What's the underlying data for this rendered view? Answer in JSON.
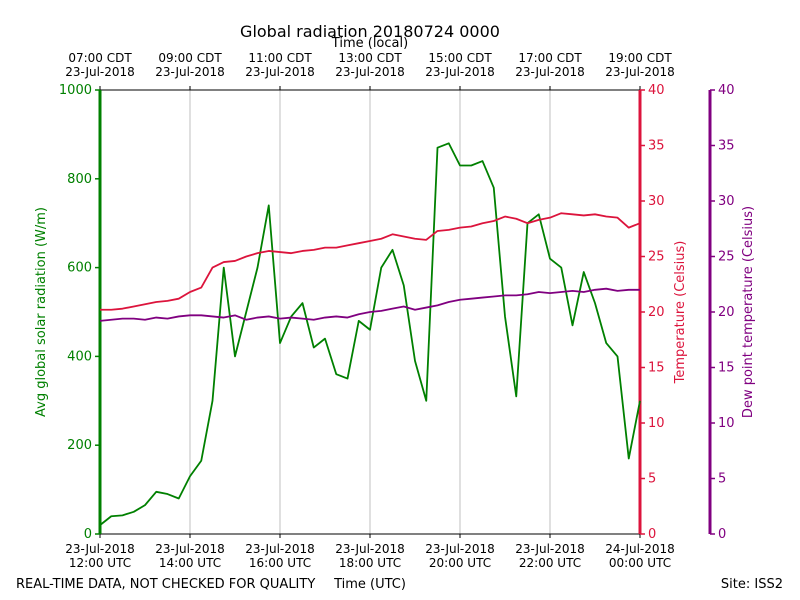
{
  "chart_data": {
    "type": "line",
    "title": "Global radiation 20180724 0000",
    "xlabel": "Time (UTC)",
    "x2label": "Time (local)",
    "ylabel": "Avg global solar radiation (W/m)",
    "y2label": "Temperature (Celsius)",
    "y3label": "Dew point temperature (Celsius)",
    "note": "REAL-TIME DATA, NOT CHECKED FOR QUALITY",
    "site": "Site: ISS2",
    "grid": true,
    "xlim": [
      "2018-07-23 12:00",
      "2018-07-24 00:00"
    ],
    "xticks": [
      {
        "value": "2018-07-23 12:00",
        "label": "23-Jul-2018\n12:00 UTC"
      },
      {
        "value": "2018-07-23 14:00",
        "label": "23-Jul-2018\n14:00 UTC"
      },
      {
        "value": "2018-07-23 16:00",
        "label": "23-Jul-2018\n16:00 UTC"
      },
      {
        "value": "2018-07-23 18:00",
        "label": "23-Jul-2018\n18:00 UTC"
      },
      {
        "value": "2018-07-23 20:00",
        "label": "23-Jul-2018\n20:00 UTC"
      },
      {
        "value": "2018-07-23 22:00",
        "label": "23-Jul-2018\n22:00 UTC"
      },
      {
        "value": "2018-07-24 00:00",
        "label": "24-Jul-2018\n00:00 UTC"
      }
    ],
    "x2ticks": [
      {
        "value": "2018-07-23 12:00",
        "label": "07:00 CDT\n23-Jul-2018"
      },
      {
        "value": "2018-07-23 14:00",
        "label": "09:00 CDT\n23-Jul-2018"
      },
      {
        "value": "2018-07-23 16:00",
        "label": "11:00 CDT\n23-Jul-2018"
      },
      {
        "value": "2018-07-23 18:00",
        "label": "13:00 CDT\n23-Jul-2018"
      },
      {
        "value": "2018-07-23 20:00",
        "label": "15:00 CDT\n23-Jul-2018"
      },
      {
        "value": "2018-07-23 22:00",
        "label": "17:00 CDT\n23-Jul-2018"
      },
      {
        "value": "2018-07-24 00:00",
        "label": "19:00 CDT\n23-Jul-2018"
      }
    ],
    "ylim": [
      0,
      1000
    ],
    "yticks": [
      0,
      200,
      400,
      600,
      800,
      1000
    ],
    "y2lim": [
      0,
      40
    ],
    "y2ticks": [
      0,
      5,
      10,
      15,
      20,
      25,
      30,
      35,
      40
    ],
    "y3lim": [
      0,
      40
    ],
    "y3ticks": [
      0,
      5,
      10,
      15,
      20,
      25,
      30,
      35,
      40
    ],
    "x": [
      "2018-07-23 12:00",
      "2018-07-23 12:15",
      "2018-07-23 12:30",
      "2018-07-23 12:45",
      "2018-07-23 13:00",
      "2018-07-23 13:15",
      "2018-07-23 13:30",
      "2018-07-23 13:45",
      "2018-07-23 14:00",
      "2018-07-23 14:15",
      "2018-07-23 14:30",
      "2018-07-23 14:45",
      "2018-07-23 15:00",
      "2018-07-23 15:15",
      "2018-07-23 15:30",
      "2018-07-23 15:45",
      "2018-07-23 16:00",
      "2018-07-23 16:15",
      "2018-07-23 16:30",
      "2018-07-23 16:45",
      "2018-07-23 17:00",
      "2018-07-23 17:15",
      "2018-07-23 17:30",
      "2018-07-23 17:45",
      "2018-07-23 18:00",
      "2018-07-23 18:15",
      "2018-07-23 18:30",
      "2018-07-23 18:45",
      "2018-07-23 19:00",
      "2018-07-23 19:15",
      "2018-07-23 19:30",
      "2018-07-23 19:45",
      "2018-07-23 20:00",
      "2018-07-23 20:15",
      "2018-07-23 20:30",
      "2018-07-23 20:45",
      "2018-07-23 21:00",
      "2018-07-23 21:15",
      "2018-07-23 21:30",
      "2018-07-23 21:45",
      "2018-07-23 22:00",
      "2018-07-23 22:15",
      "2018-07-23 22:30",
      "2018-07-23 22:45",
      "2018-07-23 23:00",
      "2018-07-23 23:15",
      "2018-07-23 23:30",
      "2018-07-23 23:45",
      "2018-07-24 00:00"
    ],
    "series": [
      {
        "name": "Avg global solar radiation",
        "color": "#008000",
        "axis": "y",
        "values": [
          20,
          40,
          42,
          50,
          65,
          95,
          90,
          80,
          130,
          165,
          300,
          600,
          400,
          500,
          600,
          740,
          430,
          490,
          520,
          420,
          440,
          360,
          350,
          480,
          460,
          600,
          640,
          560,
          390,
          300,
          870,
          880,
          830,
          830,
          840,
          780,
          490,
          310,
          700,
          720,
          620,
          600,
          470,
          590,
          520,
          430,
          400,
          170,
          300
        ]
      },
      {
        "name": "Temperature",
        "color": "#dc143c",
        "axis": "y2",
        "values": [
          20.2,
          20.2,
          20.3,
          20.5,
          20.7,
          20.9,
          21.0,
          21.2,
          21.8,
          22.2,
          24.0,
          24.5,
          24.6,
          25.0,
          25.3,
          25.5,
          25.4,
          25.3,
          25.5,
          25.6,
          25.8,
          25.8,
          26.0,
          26.2,
          26.4,
          26.6,
          27.0,
          26.8,
          26.6,
          26.5,
          27.3,
          27.4,
          27.6,
          27.7,
          28.0,
          28.2,
          28.6,
          28.4,
          28.0,
          28.3,
          28.5,
          28.9,
          28.8,
          28.7,
          28.8,
          28.6,
          28.5,
          27.6,
          28.0
        ]
      },
      {
        "name": "Dew point temperature",
        "color": "#800080",
        "axis": "y3",
        "values": [
          19.2,
          19.3,
          19.4,
          19.4,
          19.3,
          19.5,
          19.4,
          19.6,
          19.7,
          19.7,
          19.6,
          19.5,
          19.7,
          19.3,
          19.5,
          19.6,
          19.4,
          19.5,
          19.4,
          19.3,
          19.5,
          19.6,
          19.5,
          19.8,
          20.0,
          20.1,
          20.3,
          20.5,
          20.2,
          20.4,
          20.6,
          20.9,
          21.1,
          21.2,
          21.3,
          21.4,
          21.5,
          21.5,
          21.6,
          21.8,
          21.7,
          21.8,
          21.9,
          21.8,
          22.0,
          22.1,
          21.9,
          22.0,
          22.0
        ]
      }
    ]
  }
}
